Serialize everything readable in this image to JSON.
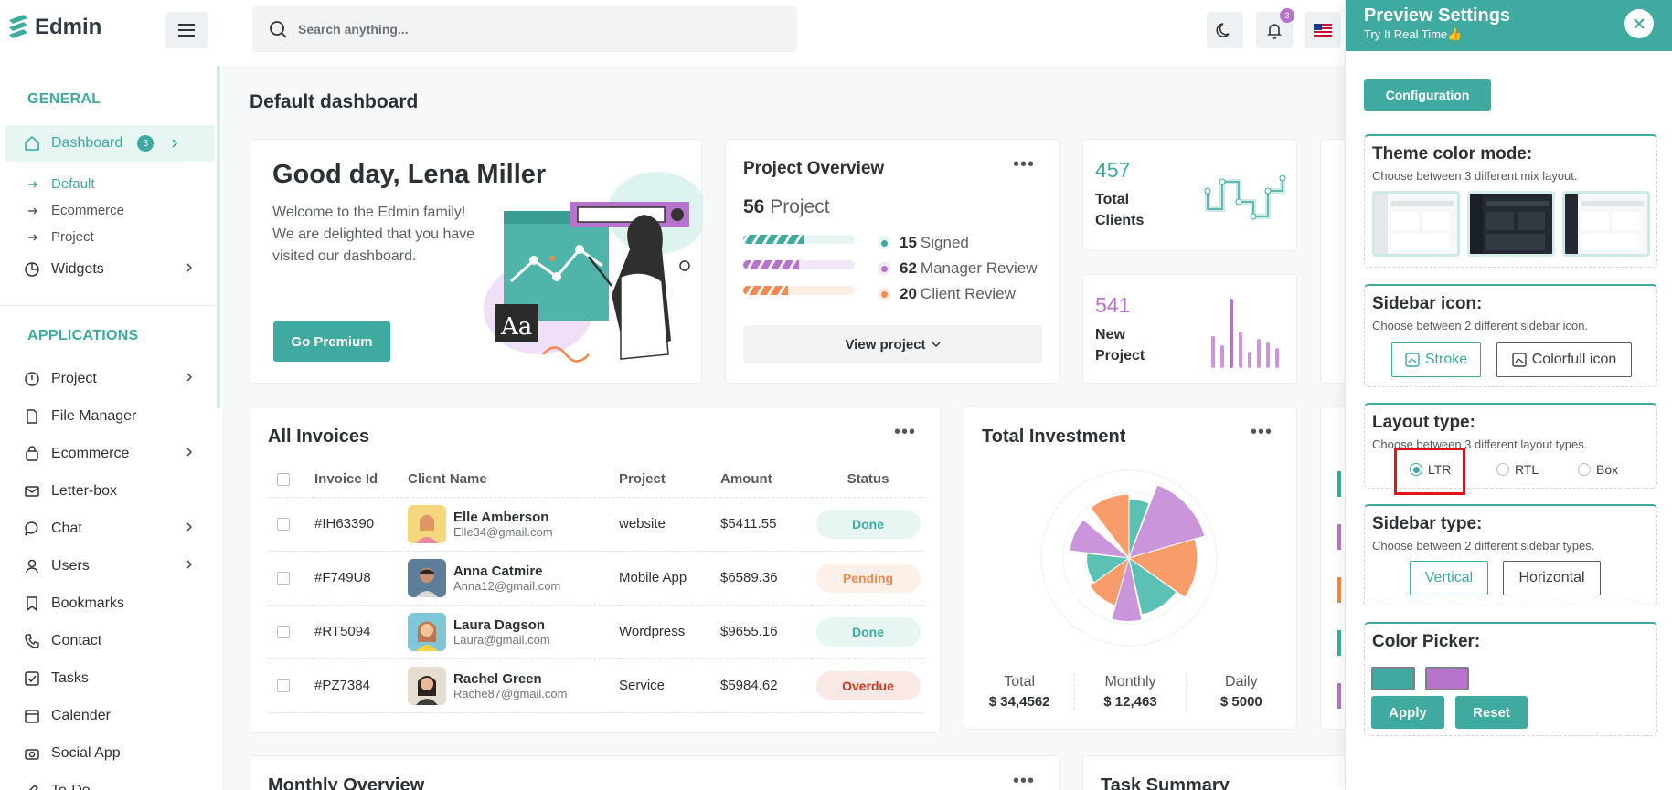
{
  "header": {
    "logo_text": "Edmin",
    "search_placeholder": "Search anything...",
    "notification_count": "3"
  },
  "sidebar": {
    "general_label": "GENERAL",
    "dashboard_label": "Dashboard",
    "dashboard_badge": "3",
    "sub_items": [
      "Default",
      "Ecommerce",
      "Project"
    ],
    "widgets_label": "Widgets",
    "applications_label": "APPLICATIONS",
    "app_items": [
      "Project",
      "File Manager",
      "Ecommerce",
      "Letter-box",
      "Chat",
      "Users",
      "Bookmarks",
      "Contact",
      "Tasks",
      "Calender",
      "Social App",
      "To-Do"
    ]
  },
  "page": {
    "title": "Default dashboard",
    "welcome": {
      "title": "Good day, Lena Miller",
      "text": "Welcome to the Edmin family! We are delighted that you have visited our dashboard.",
      "button": "Go Premium"
    },
    "project_overview": {
      "title": "Project Overview",
      "count": "56",
      "count_label": "Project",
      "legend": [
        {
          "value": "15",
          "label": "Signed",
          "color": "#3eaaa0"
        },
        {
          "value": "62",
          "label": "Manager Review",
          "color": "#b773cc"
        },
        {
          "value": "20",
          "label": "Client Review",
          "color": "#f0884f"
        }
      ],
      "view_button": "View project"
    },
    "stats": [
      {
        "value": "457",
        "label": "Total Clients",
        "color": "#3eaaa0"
      },
      {
        "value": "541",
        "label": "New Project",
        "color": "#b773cc"
      }
    ],
    "invoices": {
      "title": "All Invoices",
      "columns": [
        "Invoice Id",
        "Client Name",
        "Project",
        "Amount",
        "Status"
      ],
      "rows": [
        {
          "id": "#IH63390",
          "name": "Elle Amberson",
          "email": "Elle34@gmail.com",
          "project": "website",
          "amount": "$5411.55",
          "status": "Done"
        },
        {
          "id": "#F749U8",
          "name": "Anna Catmire",
          "email": "Anna12@gmail.com",
          "project": "Mobile App",
          "amount": "$6589.36",
          "status": "Pending"
        },
        {
          "id": "#RT5094",
          "name": "Laura Dagson",
          "email": "Laura@gmail.com",
          "project": "Wordpress",
          "amount": "$9655.16",
          "status": "Done"
        },
        {
          "id": "#PZ7384",
          "name": "Rachel Green",
          "email": "Rache87@gmail.com",
          "project": "Service",
          "amount": "$5984.62",
          "status": "Overdue"
        }
      ]
    },
    "investment": {
      "title": "Total Investment",
      "stats": [
        {
          "label": "Total",
          "value": "$ 34,4562"
        },
        {
          "label": "Monthly",
          "value": "$ 12,463"
        },
        {
          "label": "Daily",
          "value": "$ 5000"
        }
      ]
    },
    "monthly_overview_title": "Monthly Overview",
    "task_summary_title": "Task Summary"
  },
  "panel": {
    "title": "Preview Settings",
    "subtitle": "Try It Real Time👍",
    "config_button": "Configuration",
    "theme": {
      "title": "Theme color mode:",
      "desc": "Choose between 3 different mix layout."
    },
    "sidebar_icon": {
      "title": "Sidebar icon:",
      "desc": "Choose between 2 different sidebar icon.",
      "options": [
        "Stroke",
        "Colorfull icon"
      ]
    },
    "layout": {
      "title": "Layout type:",
      "desc": "Choose between 3 different layout types.",
      "options": [
        "LTR",
        "RTL",
        "Box"
      ]
    },
    "sidebar_type": {
      "title": "Sidebar type:",
      "desc": "Choose between 2 different sidebar types.",
      "options": [
        "Vertical",
        "Horizontal"
      ]
    },
    "color_picker": {
      "title": "Color Picker:",
      "colors": [
        "#3eaaa0",
        "#b773cc"
      ],
      "apply": "Apply",
      "reset": "Reset"
    }
  }
}
